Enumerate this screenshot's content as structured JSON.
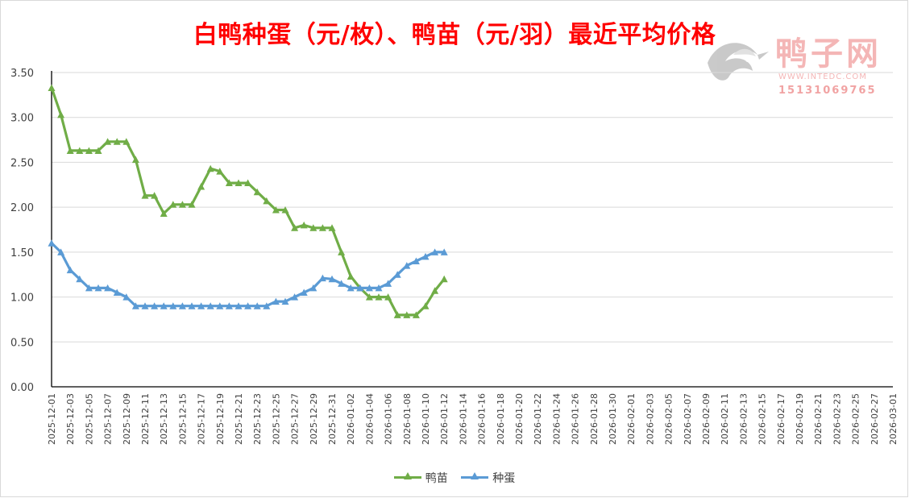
{
  "title": "白鸭种蛋（元/枚）、鸭苗（元/羽）最近平均价格",
  "watermark": {
    "name": "鸭子网",
    "url": "WWW.INTEDC.COM",
    "phone": "15131069765"
  },
  "colors": {
    "duckling": "#70ad47",
    "egg": "#5b9bd5",
    "title": "#ff0000",
    "grid": "#d9d9d9"
  },
  "chart_data": {
    "type": "line",
    "ylim": [
      0,
      3.5
    ],
    "yticks": [
      "0.00",
      "0.50",
      "1.00",
      "1.50",
      "2.00",
      "2.50",
      "3.00",
      "3.50"
    ],
    "x_axis_start": "2025-12-01",
    "x_axis_end": "2026-03-01",
    "x_tick_labels": [
      "2025-12-01",
      "2025-12-03",
      "2025-12-05",
      "2025-12-07",
      "2025-12-09",
      "2025-12-11",
      "2025-12-13",
      "2025-12-15",
      "2025-12-17",
      "2025-12-19",
      "2025-12-21",
      "2025-12-23",
      "2025-12-25",
      "2025-12-27",
      "2025-12-29",
      "2025-12-31",
      "2026-01-02",
      "2026-01-04",
      "2026-01-06",
      "2026-01-08",
      "2026-01-10",
      "2026-01-12",
      "2026-01-14",
      "2026-01-16",
      "2026-01-18",
      "2026-01-20",
      "2026-01-22",
      "2026-01-24",
      "2026-01-26",
      "2026-01-28",
      "2026-01-30",
      "2026-02-01",
      "2026-02-03",
      "2026-02-05",
      "2026-02-07",
      "2026-02-09",
      "2026-02-11",
      "2026-02-13",
      "2026-02-15",
      "2026-02-17",
      "2026-02-19",
      "2026-02-21",
      "2026-02-23",
      "2026-02-25",
      "2026-02-27",
      "2026-03-01"
    ],
    "x": [
      "2025-12-01",
      "2025-12-02",
      "2025-12-03",
      "2025-12-04",
      "2025-12-05",
      "2025-12-06",
      "2025-12-07",
      "2025-12-08",
      "2025-12-09",
      "2025-12-10",
      "2025-12-11",
      "2025-12-12",
      "2025-12-13",
      "2025-12-14",
      "2025-12-15",
      "2025-12-16",
      "2025-12-17",
      "2025-12-18",
      "2025-12-19",
      "2025-12-20",
      "2025-12-21",
      "2025-12-22",
      "2025-12-23",
      "2025-12-24",
      "2025-12-25",
      "2025-12-26",
      "2025-12-27",
      "2025-12-28",
      "2025-12-29",
      "2025-12-30",
      "2025-12-31",
      "2026-01-01",
      "2026-01-02",
      "2026-01-03",
      "2026-01-04",
      "2026-01-05",
      "2026-01-06",
      "2026-01-07",
      "2026-01-08",
      "2026-01-09",
      "2026-01-10",
      "2026-01-11",
      "2026-01-12"
    ],
    "series": [
      {
        "name": "鸭苗",
        "values": [
          3.33,
          3.03,
          2.63,
          2.63,
          2.63,
          2.63,
          2.73,
          2.73,
          2.73,
          2.53,
          2.13,
          2.13,
          1.93,
          2.03,
          2.03,
          2.03,
          2.23,
          2.43,
          2.4,
          2.27,
          2.27,
          2.27,
          2.17,
          2.07,
          1.97,
          1.97,
          1.77,
          1.8,
          1.77,
          1.77,
          1.77,
          1.5,
          1.23,
          1.1,
          1.0,
          1.0,
          1.0,
          0.8,
          0.8,
          0.8,
          0.9,
          1.07,
          1.2
        ]
      },
      {
        "name": "种蛋",
        "values": [
          1.6,
          1.5,
          1.3,
          1.2,
          1.1,
          1.1,
          1.1,
          1.05,
          1.0,
          0.9,
          0.9,
          0.9,
          0.9,
          0.9,
          0.9,
          0.9,
          0.9,
          0.9,
          0.9,
          0.9,
          0.9,
          0.9,
          0.9,
          0.9,
          0.95,
          0.95,
          1.0,
          1.05,
          1.1,
          1.21,
          1.2,
          1.15,
          1.1,
          1.1,
          1.1,
          1.1,
          1.15,
          1.25,
          1.35,
          1.4,
          1.45,
          1.5,
          1.5
        ]
      }
    ],
    "legend": [
      "鸭苗",
      "种蛋"
    ],
    "legend_position": "bottom",
    "grid": true
  }
}
